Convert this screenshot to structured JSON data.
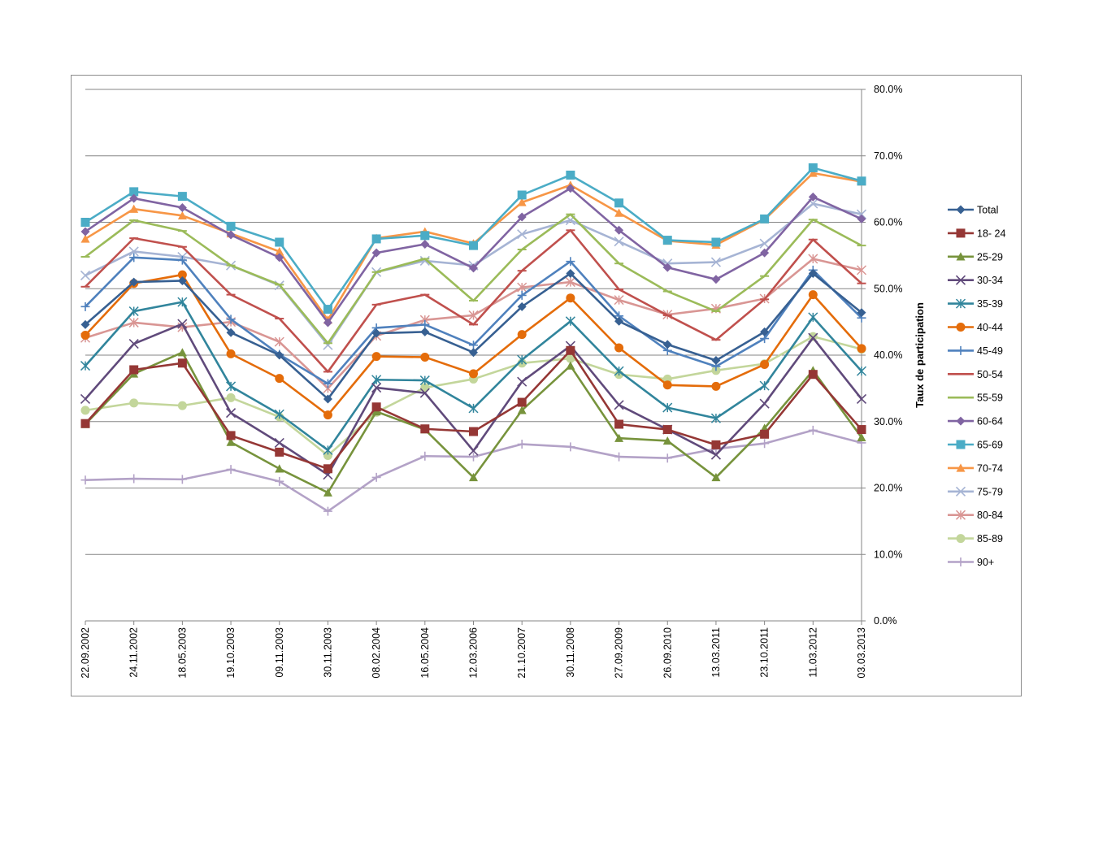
{
  "chart_data": {
    "type": "line",
    "title": "",
    "xlabel": "",
    "ylabel": "Taux de participation",
    "ylim": [
      0,
      80
    ],
    "yticks": [
      "0.0%",
      "10.0%",
      "20.0%",
      "30.0%",
      "40.0%",
      "50.0%",
      "60.0%",
      "70.0%",
      "80.0%"
    ],
    "y_axis_side": "right",
    "grid": "horizontal",
    "legend_position": "right",
    "categories": [
      "22.09.2002",
      "24.11.2002",
      "18.05.2003",
      "19.10.2003",
      "09.11.2003",
      "30.11.2003",
      "08.02.2004",
      "16.05.2004",
      "12.03.2006",
      "21.10.2007",
      "30.11.2008",
      "27.09.2009",
      "26.09.2010",
      "13.03.2011",
      "23.10.2011",
      "11.03.2012",
      "03.03.2013"
    ],
    "series": [
      {
        "name": "Total",
        "color": "#376092",
        "marker": "diamond",
        "values": [
          44.6,
          51.0,
          51.2,
          43.4,
          40.0,
          33.4,
          43.3,
          43.5,
          40.4,
          47.3,
          52.3,
          45.1,
          41.6,
          39.2,
          43.5,
          52.3,
          46.4
        ]
      },
      {
        "name": "18- 24",
        "color": "#953735",
        "marker": "square",
        "values": [
          29.7,
          37.8,
          38.8,
          27.9,
          25.4,
          22.9,
          32.2,
          28.9,
          28.5,
          32.9,
          40.7,
          29.6,
          28.8,
          26.5,
          28.1,
          37.1,
          28.8
        ]
      },
      {
        "name": "25-29",
        "color": "#77933c",
        "marker": "triangle",
        "values": [
          29.6,
          37.2,
          40.4,
          26.9,
          22.9,
          19.3,
          31.5,
          28.8,
          21.6,
          31.7,
          38.4,
          27.5,
          27.1,
          21.6,
          29.0,
          37.7,
          27.6
        ]
      },
      {
        "name": "30-34",
        "color": "#604a7b",
        "marker": "x",
        "values": [
          33.4,
          41.7,
          44.7,
          31.3,
          26.8,
          22.0,
          35.1,
          34.3,
          25.6,
          36.0,
          41.4,
          32.5,
          28.8,
          25.0,
          32.7,
          42.6,
          33.4
        ]
      },
      {
        "name": "35-39",
        "color": "#31859c",
        "marker": "star",
        "values": [
          38.4,
          46.6,
          48.0,
          35.3,
          31.1,
          25.7,
          36.3,
          36.2,
          32.0,
          39.3,
          45.1,
          37.6,
          32.1,
          30.5,
          35.4,
          45.7,
          37.6
        ]
      },
      {
        "name": "40-44",
        "color": "#e46c0a",
        "marker": "circle",
        "values": [
          43.0,
          50.8,
          52.1,
          40.2,
          36.5,
          31.0,
          39.8,
          39.7,
          37.2,
          43.1,
          48.6,
          41.1,
          35.5,
          35.3,
          38.6,
          49.1,
          41.0
        ]
      },
      {
        "name": "45-49",
        "color": "#4f81bd",
        "marker": "plus",
        "values": [
          47.3,
          54.7,
          54.3,
          45.4,
          40.1,
          35.7,
          44.1,
          44.6,
          41.5,
          49.0,
          54.1,
          45.9,
          40.7,
          38.3,
          42.5,
          52.8,
          45.6
        ]
      },
      {
        "name": "50-54",
        "color": "#c0504d",
        "marker": "dash",
        "values": [
          50.3,
          57.6,
          56.3,
          49.1,
          45.5,
          37.5,
          47.6,
          49.1,
          44.6,
          52.7,
          58.8,
          49.9,
          46.0,
          42.3,
          48.4,
          57.4,
          50.8
        ]
      },
      {
        "name": "55-59",
        "color": "#9bbb59",
        "marker": "dash",
        "values": [
          54.8,
          60.3,
          58.7,
          53.5,
          50.6,
          41.8,
          52.5,
          54.5,
          48.2,
          55.9,
          61.2,
          53.8,
          49.6,
          46.6,
          51.9,
          60.4,
          56.5
        ]
      },
      {
        "name": "60-64",
        "color": "#8064a2",
        "marker": "diamond",
        "values": [
          58.6,
          63.6,
          62.2,
          58.1,
          54.7,
          44.9,
          55.4,
          56.7,
          53.1,
          60.8,
          65.1,
          58.8,
          53.2,
          51.4,
          55.4,
          63.8,
          60.5
        ]
      },
      {
        "name": "65-69",
        "color": "#4bacc6",
        "marker": "square",
        "values": [
          60.0,
          64.6,
          63.9,
          59.4,
          57.0,
          46.9,
          57.5,
          58.0,
          56.5,
          64.1,
          67.1,
          62.9,
          57.3,
          57.0,
          60.5,
          68.2,
          66.2
        ]
      },
      {
        "name": "70-74",
        "color": "#f79646",
        "marker": "triangle",
        "values": [
          57.5,
          62.0,
          61.0,
          58.3,
          55.6,
          45.3,
          57.6,
          58.6,
          56.8,
          63.0,
          65.6,
          61.4,
          57.2,
          56.6,
          60.4,
          67.4,
          66.1
        ]
      },
      {
        "name": "75-79",
        "color": "#a6b4d4",
        "marker": "x",
        "values": [
          52.0,
          55.6,
          54.8,
          53.5,
          50.5,
          41.5,
          52.5,
          54.2,
          53.5,
          58.2,
          60.3,
          57.1,
          53.8,
          54.0,
          56.8,
          62.8,
          61.2
        ]
      },
      {
        "name": "80-84",
        "color": "#d99694",
        "marker": "star",
        "values": [
          42.6,
          44.9,
          44.2,
          45.0,
          42.0,
          35.0,
          42.9,
          45.3,
          46.0,
          50.2,
          51.0,
          48.3,
          46.1,
          47.0,
          48.5,
          54.5,
          52.8
        ]
      },
      {
        "name": "85-89",
        "color": "#c3d69b",
        "marker": "circle",
        "values": [
          31.7,
          32.8,
          32.4,
          33.6,
          30.7,
          24.9,
          31.4,
          35.1,
          36.4,
          38.8,
          39.5,
          37.1,
          36.4,
          37.7,
          38.7,
          42.8,
          40.9
        ]
      },
      {
        "name": "90+",
        "color": "#b3a2c7",
        "marker": "plus",
        "values": [
          21.2,
          21.4,
          21.3,
          22.8,
          21.0,
          16.5,
          21.6,
          24.8,
          24.7,
          26.6,
          26.2,
          24.7,
          24.5,
          25.9,
          26.7,
          28.7,
          26.8
        ]
      }
    ]
  }
}
